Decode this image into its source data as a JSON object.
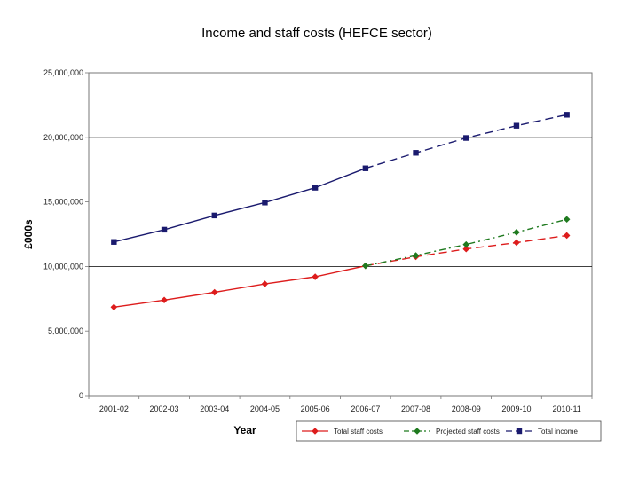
{
  "chart_data": {
    "type": "line",
    "title": "Income and staff costs (HEFCE sector)",
    "xlabel": "Year",
    "ylabel": "£000s",
    "ylim": [
      0,
      25000000
    ],
    "yticks": [
      "0",
      "5,000,000",
      "10,000,000",
      "15,000,000",
      "20,000,000",
      "25,000,000"
    ],
    "categories": [
      "2001-02",
      "2002-03",
      "2003-04",
      "2004-05",
      "2005-06",
      "2006-07",
      "2007-08",
      "2008-09",
      "2009-10",
      "2010-11"
    ],
    "grid": {
      "horizontal_at": [
        10000000,
        20000000
      ]
    },
    "legend_position": "bottom-right",
    "series": [
      {
        "name": "Total staff costs",
        "color": "#dd1c1c",
        "marker": "diamond",
        "solid_through_index": 5,
        "values": [
          6850000,
          7400000,
          8000000,
          8650000,
          9200000,
          10050000,
          10750000,
          11350000,
          11850000,
          12400000
        ]
      },
      {
        "name": "Projected staff costs",
        "color": "#1f7a1f",
        "marker": "diamond",
        "dash": "dashdot",
        "values": [
          null,
          null,
          null,
          null,
          null,
          10050000,
          10850000,
          11700000,
          12650000,
          13650000
        ]
      },
      {
        "name": "Total income",
        "color": "#1a1a6e",
        "marker": "square",
        "solid_through_index": 5,
        "values": [
          11900000,
          12850000,
          13950000,
          14950000,
          16100000,
          17600000,
          18800000,
          19950000,
          20900000,
          21750000
        ]
      }
    ]
  }
}
